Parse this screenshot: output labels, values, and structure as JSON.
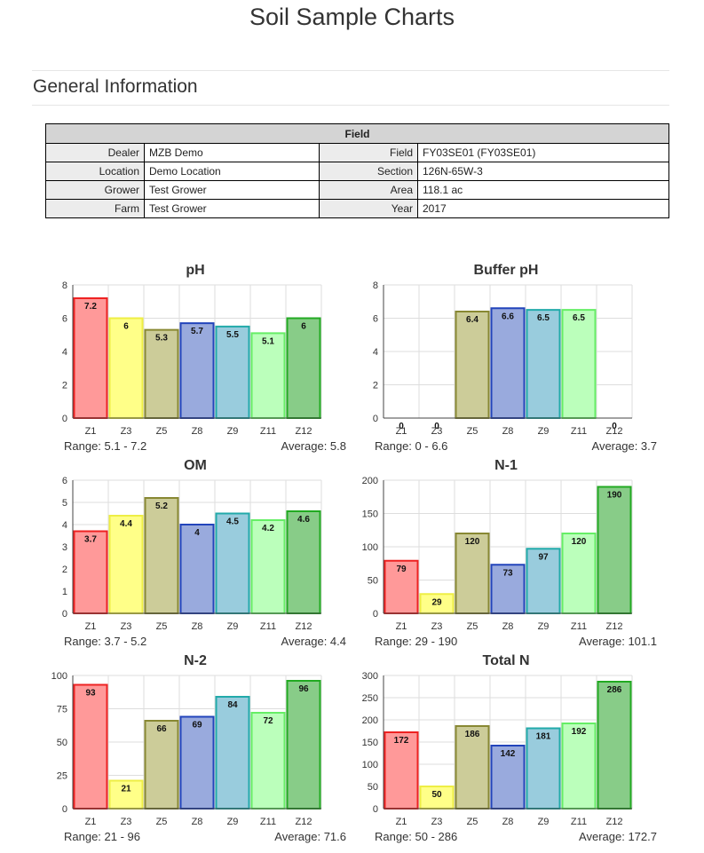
{
  "page": {
    "title": "Soil Sample Charts",
    "section_title": "General Information"
  },
  "field_table": {
    "header": "Field",
    "rows": [
      {
        "l1": "Dealer",
        "v1": "MZB Demo",
        "l2": "Field",
        "v2": "FY03SE01 (FY03SE01)"
      },
      {
        "l1": "Location",
        "v1": "Demo Location",
        "l2": "Section",
        "v2": "126N-65W-3"
      },
      {
        "l1": "Grower",
        "v1": "Test Grower",
        "l2": "Area",
        "v2": "118.1 ac"
      },
      {
        "l1": "Farm",
        "v1": "Test Grower",
        "l2": "Year",
        "v2": "2017"
      }
    ]
  },
  "colors": {
    "fills": [
      "#ff9999",
      "#ffff88",
      "#cccc99",
      "#99aadd",
      "#99ccdd",
      "#bbffbb",
      "#88cc88"
    ],
    "strokes": [
      "#ee2222",
      "#eeee44",
      "#888833",
      "#2244bb",
      "#22aaaa",
      "#66ee66",
      "#22aa22"
    ]
  },
  "chart_data": [
    {
      "type": "bar",
      "title": "pH",
      "categories": [
        "Z1",
        "Z3",
        "Z5",
        "Z8",
        "Z9",
        "Z11",
        "Z12"
      ],
      "values": [
        7.2,
        6,
        5.3,
        5.7,
        5.5,
        5.1,
        6
      ],
      "labels": [
        "7.2",
        "6",
        "5.3",
        "5.7",
        "5.5",
        "5.1",
        "6"
      ],
      "ylim": [
        0,
        8
      ],
      "yticks": [
        0,
        2,
        4,
        6,
        8
      ],
      "range_text": "Range: 5.1 - 7.2",
      "average_text": "Average: 5.8"
    },
    {
      "type": "bar",
      "title": "Buffer pH",
      "categories": [
        "Z1",
        "Z3",
        "Z5",
        "Z8",
        "Z9",
        "Z11",
        "Z12"
      ],
      "values": [
        0,
        0,
        6.4,
        6.6,
        6.5,
        6.5,
        0
      ],
      "labels": [
        "0",
        "0",
        "6.4",
        "6.6",
        "6.5",
        "6.5",
        "0"
      ],
      "ylim": [
        0,
        8
      ],
      "yticks": [
        0,
        2,
        4,
        6,
        8
      ],
      "range_text": "Range: 0 - 6.6",
      "average_text": "Average: 3.7"
    },
    {
      "type": "bar",
      "title": "OM",
      "categories": [
        "Z1",
        "Z3",
        "Z5",
        "Z8",
        "Z9",
        "Z11",
        "Z12"
      ],
      "values": [
        3.7,
        4.4,
        5.2,
        4,
        4.5,
        4.2,
        4.6
      ],
      "labels": [
        "3.7",
        "4.4",
        "5.2",
        "4",
        "4.5",
        "4.2",
        "4.6"
      ],
      "ylim": [
        0,
        6
      ],
      "yticks": [
        0,
        1,
        2,
        3,
        4,
        5,
        6
      ],
      "range_text": "Range: 3.7 - 5.2",
      "average_text": "Average: 4.4"
    },
    {
      "type": "bar",
      "title": "N-1",
      "categories": [
        "Z1",
        "Z3",
        "Z5",
        "Z8",
        "Z9",
        "Z11",
        "Z12"
      ],
      "values": [
        79,
        29,
        120,
        73,
        97,
        120,
        190
      ],
      "labels": [
        "79",
        "29",
        "120",
        "73",
        "97",
        "120",
        "190"
      ],
      "ylim": [
        0,
        200
      ],
      "yticks": [
        0,
        50,
        100,
        150,
        200
      ],
      "range_text": "Range: 29 - 190",
      "average_text": "Average: 101.1"
    },
    {
      "type": "bar",
      "title": "N-2",
      "categories": [
        "Z1",
        "Z3",
        "Z5",
        "Z8",
        "Z9",
        "Z11",
        "Z12"
      ],
      "values": [
        93,
        21,
        66,
        69,
        84,
        72,
        96
      ],
      "labels": [
        "93",
        "21",
        "66",
        "69",
        "84",
        "72",
        "96"
      ],
      "ylim": [
        0,
        100
      ],
      "yticks": [
        0,
        25,
        50,
        75,
        100
      ],
      "range_text": "Range: 21 - 96",
      "average_text": "Average: 71.6"
    },
    {
      "type": "bar",
      "title": "Total N",
      "categories": [
        "Z1",
        "Z3",
        "Z5",
        "Z8",
        "Z9",
        "Z11",
        "Z12"
      ],
      "values": [
        172,
        50,
        186,
        142,
        181,
        192,
        286
      ],
      "labels": [
        "172",
        "50",
        "186",
        "142",
        "181",
        "192",
        "286"
      ],
      "ylim": [
        0,
        300
      ],
      "yticks": [
        0,
        50,
        100,
        150,
        200,
        250,
        300
      ],
      "range_text": "Range: 50 - 286",
      "average_text": "Average: 172.7"
    }
  ]
}
